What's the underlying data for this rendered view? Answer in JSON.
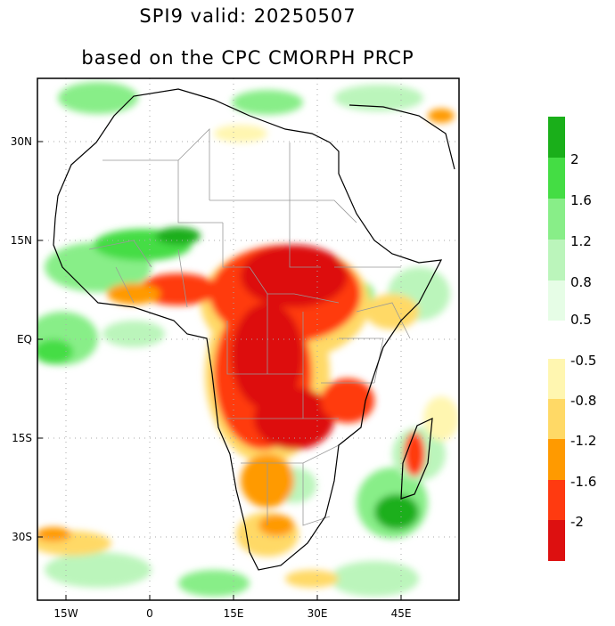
{
  "title": {
    "line1": "SPI9   valid: 20250507",
    "line2": "based on the CPC CMORPH PRCP"
  },
  "map": {
    "lon_ticks": [
      "15W",
      "0",
      "15E",
      "30E",
      "45E"
    ],
    "lat_ticks": [
      "30N",
      "15N",
      "EQ",
      "15S",
      "30S"
    ]
  },
  "colorbar_wet": {
    "labels": [
      "2",
      "1.6",
      "1.2",
      "0.8",
      "0.5"
    ],
    "colors": [
      "#1aaf1a",
      "#44dd44",
      "#88ee88",
      "#bbf5bb",
      "#e6fde6"
    ]
  },
  "colorbar_dry": {
    "labels": [
      "-0.5",
      "-0.8",
      "-1.2",
      "-1.6",
      "-2"
    ],
    "colors": [
      "#fff6b0",
      "#ffd966",
      "#ff9a00",
      "#ff3a10",
      "#dd1010"
    ]
  },
  "colors": {
    "frame": "#000000",
    "coast": "#000000",
    "borders": "#999999",
    "grid": "#aaaaaa"
  }
}
